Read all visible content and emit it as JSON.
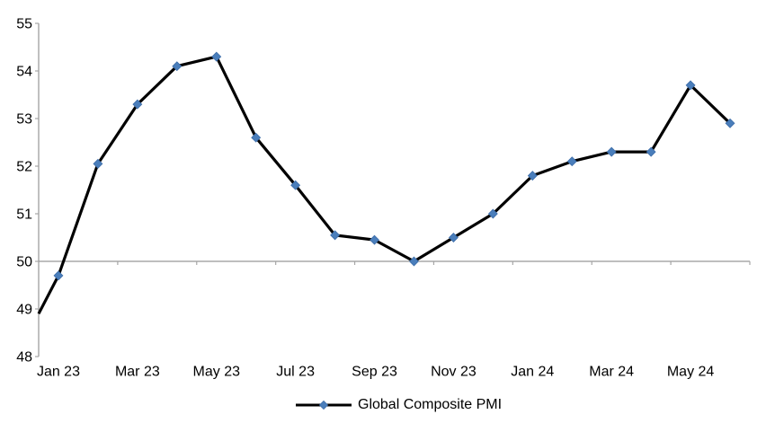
{
  "chart_data": {
    "type": "line",
    "title": "",
    "xlabel": "",
    "ylabel": "",
    "ylim": [
      48,
      55
    ],
    "y_ticks": [
      48,
      49,
      50,
      51,
      52,
      53,
      54,
      55
    ],
    "x_axis_cross_at": 50,
    "grid": false,
    "categories": [
      "Jan 23",
      "Feb 23",
      "Mar 23",
      "Apr 23",
      "May 23",
      "Jun 23",
      "Jul 23",
      "Aug 23",
      "Sep 23",
      "Oct 23",
      "Nov 23",
      "Dec 23",
      "Jan 24",
      "Feb 24",
      "Mar 24",
      "Apr 24",
      "May 24",
      "Jun 24"
    ],
    "x_tick_labels": [
      "Jan 23",
      "Mar 23",
      "May 23",
      "Jul 23",
      "Sep 23",
      "Nov 23",
      "Jan 24",
      "Mar 24",
      "May 24"
    ],
    "x_tick_label_every": 2,
    "series": [
      {
        "name": "Global Composite PMI",
        "values": [
          49.7,
          52.05,
          53.3,
          54.1,
          54.3,
          52.6,
          51.6,
          50.55,
          50.45,
          50.0,
          50.5,
          51.0,
          51.8,
          52.1,
          52.3,
          52.3,
          53.7,
          52.9
        ],
        "left_edge_entry_value": 48.9,
        "marker": "diamond"
      }
    ],
    "legend_position": "bottom-center",
    "colors": {
      "line": "#000000",
      "marker_fill": "#4a7ebb",
      "marker_border": "#3c6ca8",
      "axis": "#969696",
      "tick": "#a6a6a6",
      "text": "#000000",
      "background": "#ffffff"
    }
  }
}
